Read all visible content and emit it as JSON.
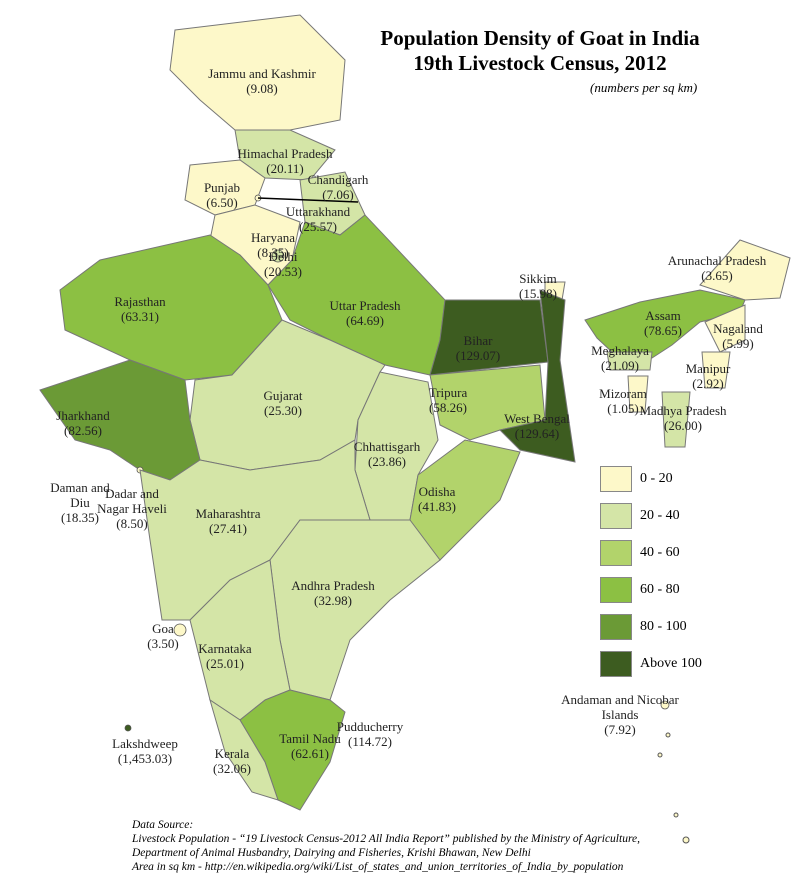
{
  "title": "Population Density of Goat in India",
  "subtitle": "19th Livestock Census, 2012",
  "units_note": "(numbers per sq km)",
  "legend": [
    {
      "label": "0 - 20",
      "min": 0,
      "max": 20,
      "color": "#fdf8c9"
    },
    {
      "label": "20 - 40",
      "min": 20,
      "max": 40,
      "color": "#d4e5a7"
    },
    {
      "label": "40 - 60",
      "min": 40,
      "max": 60,
      "color": "#b2d36b"
    },
    {
      "label": "60 - 80",
      "min": 60,
      "max": 80,
      "color": "#8cc043"
    },
    {
      "label": "80 - 100",
      "min": 80,
      "max": 100,
      "color": "#6b9a36"
    },
    {
      "label": "Above 100",
      "min": 100,
      "max": null,
      "color": "#3d5c20"
    }
  ],
  "regions": [
    {
      "name": "Jammu and Kashmir",
      "value": 9.08,
      "value_label": "(9.08)"
    },
    {
      "name": "Himachal Pradesh",
      "value": 20.11,
      "value_label": "(20.11)"
    },
    {
      "name": "Punjab",
      "value": 6.5,
      "value_label": "(6.50)"
    },
    {
      "name": "Chandigarh",
      "value": 7.06,
      "value_label": "(7.06)"
    },
    {
      "name": "Uttarakhand",
      "value": 25.57,
      "value_label": "(25.57)"
    },
    {
      "name": "Haryana",
      "value": 8.35,
      "value_label": "(8.35)"
    },
    {
      "name": "Delhi",
      "value": 20.53,
      "value_label": "(20.53)"
    },
    {
      "name": "Rajasthan",
      "value": 63.31,
      "value_label": "(63.31)"
    },
    {
      "name": "Uttar Pradesh",
      "value": 64.69,
      "value_label": "(64.69)"
    },
    {
      "name": "Sikkim",
      "value": 15.98,
      "value_label": "(15.98)"
    },
    {
      "name": "Arunachal Pradesh",
      "value": 3.65,
      "value_label": "(3.65)"
    },
    {
      "name": "Assam",
      "value": 78.65,
      "value_label": "(78.65)"
    },
    {
      "name": "Nagaland",
      "value": 5.99,
      "value_label": "(5.99)"
    },
    {
      "name": "Bihar",
      "value": 129.07,
      "value_label": "(129.07)"
    },
    {
      "name": "Meghalaya",
      "value": 21.09,
      "value_label": "(21.09)"
    },
    {
      "name": "Manipur",
      "value": 2.92,
      "value_label": "(2.92)"
    },
    {
      "name": "Madhya Pradesh",
      "value": 26.0,
      "value_label": "(26.00)"
    },
    {
      "name": "Gujarat",
      "value": 25.3,
      "value_label": "(25.30)"
    },
    {
      "name": "Jharkhand",
      "value": 82.56,
      "value_label": "(82.56)"
    },
    {
      "name": "Tripura",
      "value": 58.26,
      "value_label": "(58.26)"
    },
    {
      "name": "Mizoram",
      "value": 1.05,
      "value_label": "(1.05)"
    },
    {
      "name": "West Bengal",
      "value": 129.64,
      "value_label": "(129.64)"
    },
    {
      "name": "Chhattisgarh",
      "value": 23.86,
      "value_label": "(23.86)"
    },
    {
      "name": "Odisha",
      "value": 41.83,
      "value_label": "(41.83)"
    },
    {
      "name": "Daman and Diu",
      "value": 18.35,
      "value_label": "(18.35)"
    },
    {
      "name": "Dadar and Nagar Haveli",
      "value": 8.5,
      "value_label": "(8.50)"
    },
    {
      "name": "Maharashtra",
      "value": 27.41,
      "value_label": "(27.41)"
    },
    {
      "name": "Andhra Pradesh",
      "value": 32.98,
      "value_label": "(32.98)"
    },
    {
      "name": "Goa",
      "value": 3.5,
      "value_label": "(3.50)"
    },
    {
      "name": "Karnataka",
      "value": 25.01,
      "value_label": "(25.01)"
    },
    {
      "name": "Andaman and Nicobar Islands",
      "value": 7.92,
      "value_label": "(7.92)"
    },
    {
      "name": "Pudducherry",
      "value": 114.72,
      "value_label": "(114.72)"
    },
    {
      "name": "Lakshdweep",
      "value": 1453.03,
      "value_label": "(1,453.03)"
    },
    {
      "name": "Tamil Nadu",
      "value": 62.61,
      "value_label": "(62.61)"
    },
    {
      "name": "Kerala",
      "value": 32.06,
      "value_label": "(32.06)"
    }
  ],
  "source": [
    "Data Source:",
    "Livestock Population - “19 Livestock Census-2012 All India Report” published by the Ministry of Agriculture,",
    "Department of Animal Husbandry, Dairying and Fisheries, Krishi Bhawan, New Delhi",
    "Area in sq km - http://en.wikipedia.org/wiki/List_of_states_and_union_territories_of_India_by_population"
  ]
}
